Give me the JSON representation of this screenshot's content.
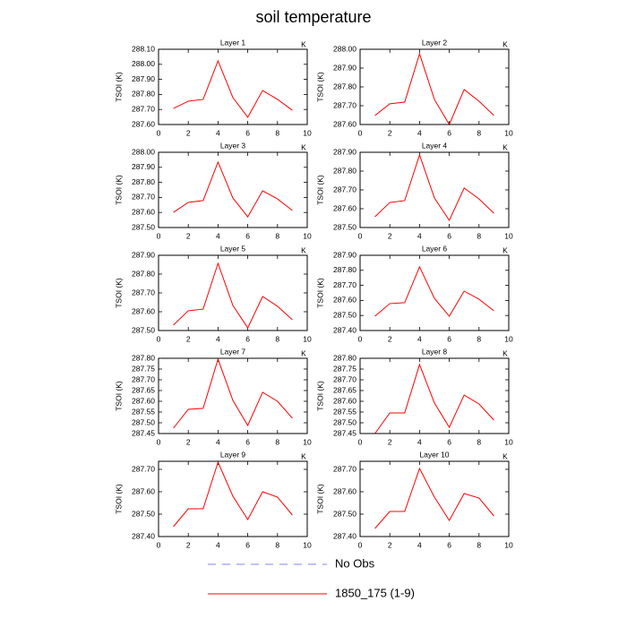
{
  "title": "soil temperature",
  "legend": [
    {
      "name": "No Obs",
      "color": "#8080ff",
      "dashed": true
    },
    {
      "name": "1850_175 (1-9)",
      "color": "#ff0000",
      "dashed": false
    }
  ],
  "chart_data": [
    {
      "type": "line",
      "title": "Layer 1",
      "ylabel": "TSOI  (K)",
      "units": "K",
      "color": "#ff0000",
      "x": [
        1,
        2,
        3,
        4,
        5,
        6,
        7,
        8,
        9
      ],
      "values": [
        287.707,
        287.755,
        287.767,
        288.023,
        287.779,
        287.648,
        287.826,
        287.767,
        287.695
      ],
      "xlim": [
        0,
        10
      ],
      "xticks": [
        0,
        2,
        4,
        6,
        8,
        10
      ],
      "ylim": [
        287.6,
        288.1
      ],
      "yticks": [
        {
          "value": 287.6,
          "label": "287.60"
        },
        {
          "value": 287.7,
          "label": "287.70"
        },
        {
          "value": 287.8,
          "label": "287.80"
        },
        {
          "value": 287.9,
          "label": "287.90"
        },
        {
          "value": 288.0,
          "label": "288.00"
        },
        {
          "value": 288.1,
          "label": "288.10"
        }
      ]
    },
    {
      "type": "line",
      "title": "Layer 2",
      "ylabel": "TSOI  (K)",
      "units": "K",
      "color": "#ff0000",
      "x": [
        1,
        2,
        3,
        4,
        5,
        6,
        7,
        8,
        9
      ],
      "values": [
        287.648,
        287.71,
        287.719,
        287.976,
        287.733,
        287.6,
        287.786,
        287.724,
        287.648
      ],
      "xlim": [
        0,
        10
      ],
      "xticks": [
        0,
        2,
        4,
        6,
        8,
        10
      ],
      "ylim": [
        287.6,
        288.0
      ],
      "yticks": [
        {
          "value": 287.6,
          "label": "287.60"
        },
        {
          "value": 287.7,
          "label": "287.70"
        },
        {
          "value": 287.8,
          "label": "287.80"
        },
        {
          "value": 287.9,
          "label": "287.90"
        },
        {
          "value": 288.0,
          "label": "288.00"
        }
      ]
    },
    {
      "type": "line",
      "title": "Layer 3",
      "ylabel": "TSOI  (K)",
      "units": "K",
      "color": "#ff0000",
      "x": [
        1,
        2,
        3,
        4,
        5,
        6,
        7,
        8,
        9
      ],
      "values": [
        287.601,
        287.667,
        287.679,
        287.935,
        287.696,
        287.571,
        287.744,
        287.69,
        287.613
      ],
      "xlim": [
        0,
        10
      ],
      "xticks": [
        0,
        2,
        4,
        6,
        8,
        10
      ],
      "ylim": [
        287.5,
        288.0
      ],
      "yticks": [
        {
          "value": 287.5,
          "label": "287.50"
        },
        {
          "value": 287.6,
          "label": "287.60"
        },
        {
          "value": 287.7,
          "label": "287.70"
        },
        {
          "value": 287.8,
          "label": "287.80"
        },
        {
          "value": 287.9,
          "label": "287.90"
        },
        {
          "value": 288.0,
          "label": "288.00"
        }
      ]
    },
    {
      "type": "line",
      "title": "Layer 4",
      "ylabel": "TSOI  (K)",
      "units": "K",
      "color": "#ff0000",
      "x": [
        1,
        2,
        3,
        4,
        5,
        6,
        7,
        8,
        9
      ],
      "values": [
        287.557,
        287.633,
        287.643,
        287.886,
        287.657,
        287.538,
        287.71,
        287.652,
        287.576
      ],
      "xlim": [
        0,
        10
      ],
      "xticks": [
        0,
        2,
        4,
        6,
        8,
        10
      ],
      "ylim": [
        287.5,
        287.9
      ],
      "yticks": [
        {
          "value": 287.5,
          "label": "287.50"
        },
        {
          "value": 287.6,
          "label": "287.60"
        },
        {
          "value": 287.7,
          "label": "287.70"
        },
        {
          "value": 287.8,
          "label": "287.80"
        },
        {
          "value": 287.9,
          "label": "287.90"
        }
      ]
    },
    {
      "type": "line",
      "title": "Layer 5",
      "ylabel": "TSOI  (K)",
      "units": "K",
      "color": "#ff0000",
      "x": [
        1,
        2,
        3,
        4,
        5,
        6,
        7,
        8,
        9
      ],
      "values": [
        287.529,
        287.605,
        287.614,
        287.857,
        287.633,
        287.514,
        287.681,
        287.629,
        287.557
      ],
      "xlim": [
        0,
        10
      ],
      "xticks": [
        0,
        2,
        4,
        6,
        8,
        10
      ],
      "ylim": [
        287.5,
        287.9
      ],
      "yticks": [
        {
          "value": 287.5,
          "label": "287.50"
        },
        {
          "value": 287.6,
          "label": "287.60"
        },
        {
          "value": 287.7,
          "label": "287.70"
        },
        {
          "value": 287.8,
          "label": "287.80"
        },
        {
          "value": 287.9,
          "label": "287.90"
        }
      ]
    },
    {
      "type": "line",
      "title": "Layer 6",
      "ylabel": "TSOI  (K)",
      "units": "K",
      "color": "#ff0000",
      "x": [
        1,
        2,
        3,
        4,
        5,
        6,
        7,
        8,
        9
      ],
      "values": [
        287.495,
        287.579,
        287.585,
        287.823,
        287.614,
        287.495,
        287.662,
        287.608,
        287.531
      ],
      "xlim": [
        0,
        10
      ],
      "xticks": [
        0,
        2,
        4,
        6,
        8,
        10
      ],
      "ylim": [
        287.4,
        287.9
      ],
      "yticks": [
        {
          "value": 287.4,
          "label": "287.40"
        },
        {
          "value": 287.5,
          "label": "287.50"
        },
        {
          "value": 287.6,
          "label": "287.60"
        },
        {
          "value": 287.7,
          "label": "287.70"
        },
        {
          "value": 287.8,
          "label": "287.80"
        },
        {
          "value": 287.9,
          "label": "287.90"
        }
      ]
    },
    {
      "type": "line",
      "title": "Layer 7",
      "ylabel": "TSOI  (K)",
      "units": "K",
      "color": "#ff0000",
      "x": [
        1,
        2,
        3,
        4,
        5,
        6,
        7,
        8,
        9
      ],
      "values": [
        287.475,
        287.5625,
        287.567,
        287.796,
        287.604,
        287.4875,
        287.642,
        287.6,
        287.521
      ],
      "xlim": [
        0,
        10
      ],
      "xticks": [
        0,
        2,
        4,
        6,
        8,
        10
      ],
      "ylim": [
        287.45,
        287.8
      ],
      "yticks": [
        287.45,
        {
          "value": 287.5,
          "label": "287.50"
        },
        287.55,
        {
          "value": 287.6,
          "label": "287.60"
        },
        287.65,
        {
          "value": 287.7,
          "label": "287.70"
        },
        287.75,
        {
          "value": 287.8,
          "label": "287.80"
        }
      ]
    },
    {
      "type": "line",
      "title": "Layer 8",
      "ylabel": "TSOI  (K)",
      "units": "K",
      "color": "#ff0000",
      "x": [
        1,
        2,
        3,
        4,
        5,
        6,
        7,
        8,
        9
      ],
      "values": [
        287.45,
        287.546,
        287.546,
        287.771,
        287.592,
        287.479,
        287.629,
        287.5875,
        287.5125
      ],
      "xlim": [
        0,
        10
      ],
      "xticks": [
        0,
        2,
        4,
        6,
        8,
        10
      ],
      "ylim": [
        287.45,
        287.8
      ],
      "yticks": [
        287.45,
        {
          "value": 287.5,
          "label": "287.50"
        },
        287.55,
        {
          "value": 287.6,
          "label": "287.60"
        },
        287.65,
        {
          "value": 287.7,
          "label": "287.70"
        },
        287.75,
        {
          "value": 287.8,
          "label": "287.80"
        }
      ]
    },
    {
      "type": "line",
      "title": "Layer 9",
      "ylabel": "TSOI  (K)",
      "units": "K",
      "color": "#ff0000",
      "x": [
        1,
        2,
        3,
        4,
        5,
        6,
        7,
        8,
        9
      ],
      "values": [
        287.444,
        287.524,
        287.524,
        287.732,
        287.58,
        287.476,
        287.6,
        287.576,
        287.496
      ],
      "xlim": [
        0,
        10
      ],
      "xticks": [
        0,
        2,
        4,
        6,
        8,
        10
      ],
      "ylim": [
        287.4,
        287.736
      ],
      "yticks": [
        {
          "value": 287.4,
          "label": "287.40"
        },
        {
          "value": 287.5,
          "label": "287.50"
        },
        {
          "value": 287.6,
          "label": "287.60"
        },
        {
          "value": 287.7,
          "label": "287.70"
        }
      ]
    },
    {
      "type": "line",
      "title": "Layer 10",
      "ylabel": "TSOI  (K)",
      "units": "K",
      "color": "#ff0000",
      "x": [
        1,
        2,
        3,
        4,
        5,
        6,
        7,
        8,
        9
      ],
      "values": [
        287.436,
        287.512,
        287.512,
        287.704,
        287.576,
        287.472,
        287.592,
        287.572,
        287.492
      ],
      "xlim": [
        0,
        10
      ],
      "xticks": [
        0,
        2,
        4,
        6,
        8,
        10
      ],
      "ylim": [
        287.4,
        287.736
      ],
      "yticks": [
        {
          "value": 287.4,
          "label": "287.40"
        },
        {
          "value": 287.5,
          "label": "287.50"
        },
        {
          "value": 287.6,
          "label": "287.60"
        },
        {
          "value": 287.7,
          "label": "287.70"
        }
      ]
    }
  ]
}
